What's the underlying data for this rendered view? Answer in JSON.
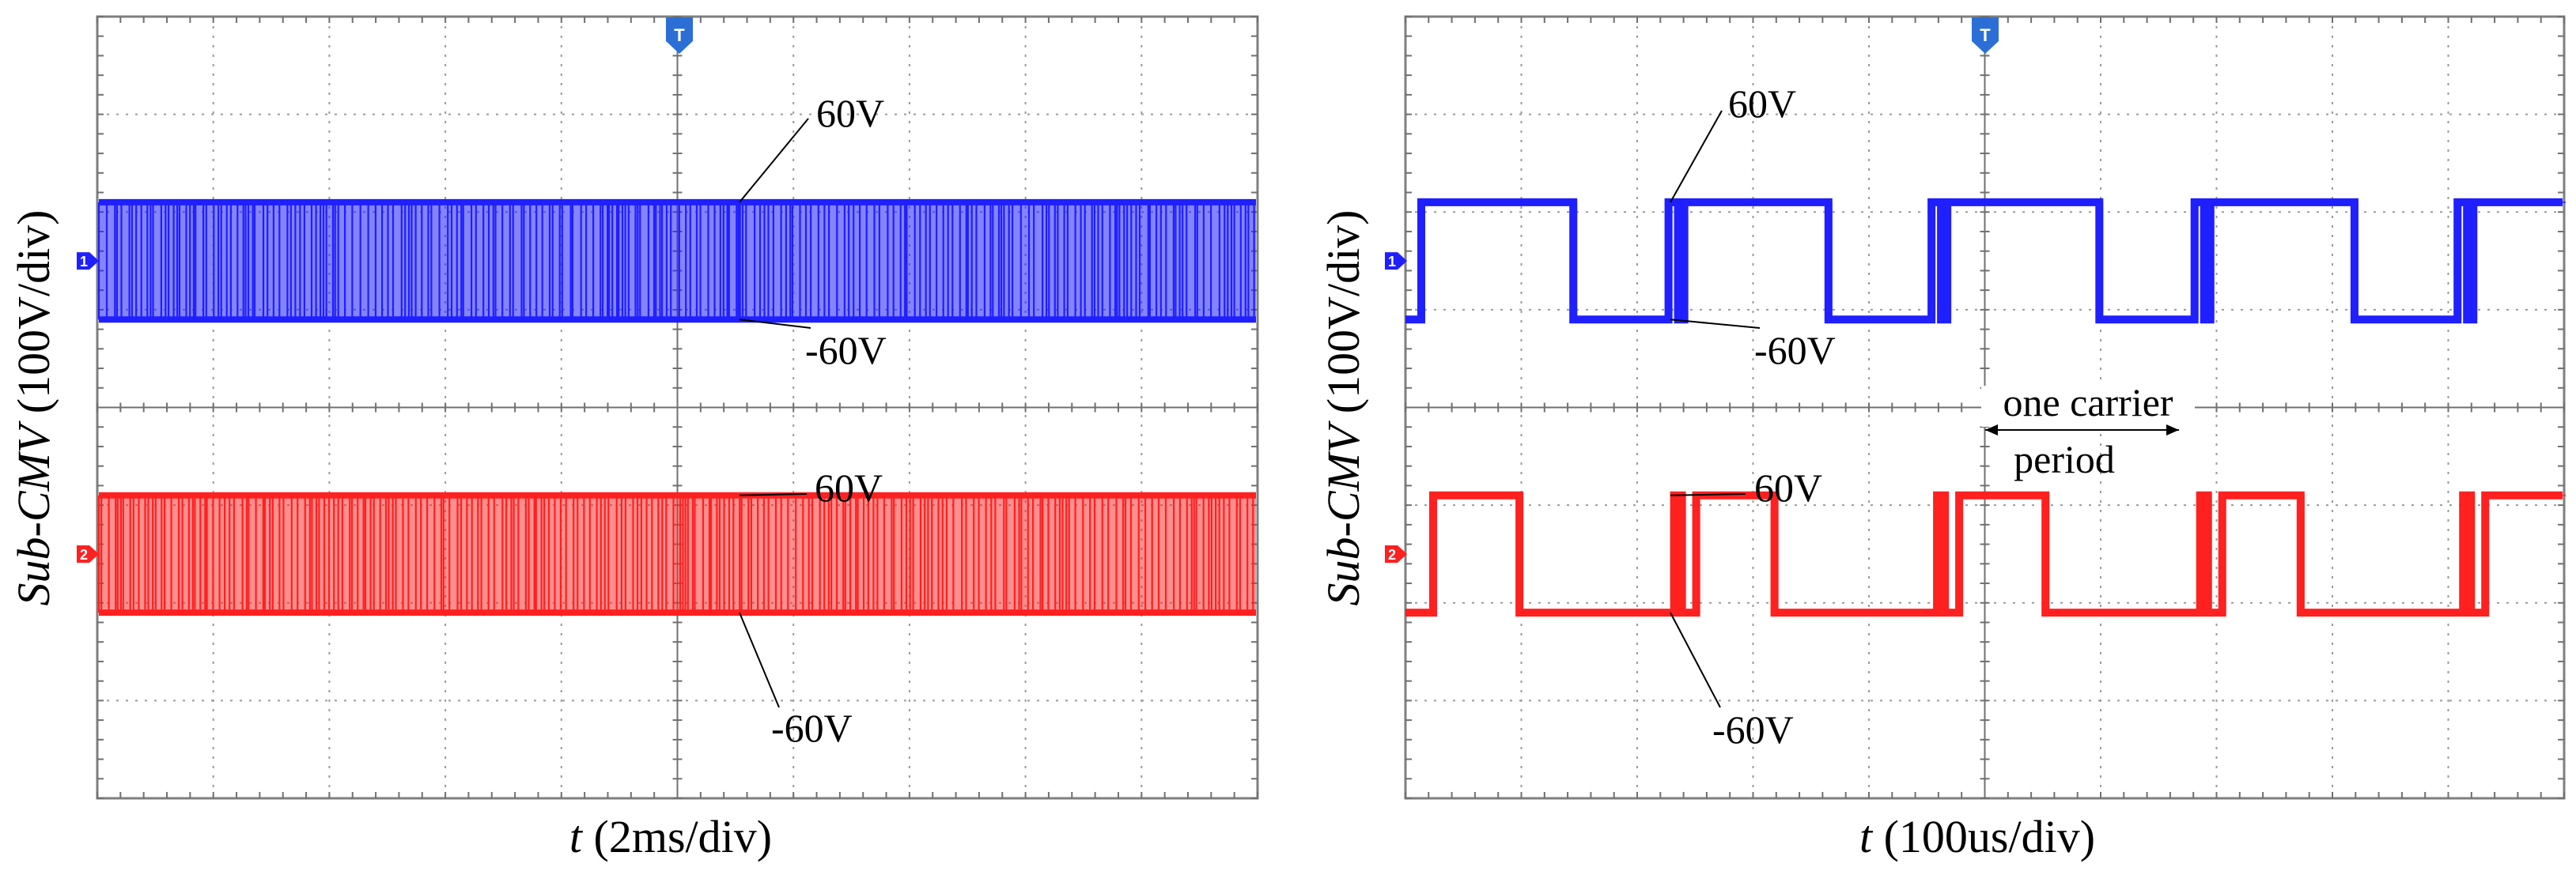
{
  "chart_data": [
    {
      "type": "line",
      "panel": "left",
      "ylabel_italic": "Sub-CMV",
      "ylabel_rest": " (100V/div)",
      "xlabel_italic": "t",
      "xlabel_rest": " (2ms/div)",
      "divisions": {
        "x": 10,
        "y": 8
      },
      "trigger_label": "T",
      "series": [
        {
          "name": "ch1",
          "marker_label": "1",
          "color": "#1f1fff",
          "high": 60,
          "low": -60,
          "offset_div": 1.5,
          "style": "dense",
          "high_label": "60V",
          "low_label": "-60V"
        },
        {
          "name": "ch2",
          "marker_label": "2",
          "color": "#ff2020",
          "high": 60,
          "low": -60,
          "offset_div": -1.5,
          "style": "dense",
          "high_label": "60V",
          "low_label": "-60V"
        }
      ]
    },
    {
      "type": "line",
      "panel": "right",
      "ylabel_italic": "Sub-CMV",
      "ylabel_rest": " (100V/div)",
      "xlabel_italic": "t",
      "xlabel_rest": " (100us/div)",
      "divisions": {
        "x": 10,
        "y": 8
      },
      "trigger_label": "T",
      "annotation_line1": "one carrier",
      "annotation_line2": "period",
      "series": [
        {
          "name": "ch1",
          "marker_label": "1",
          "color": "#1f1fff",
          "high": 60,
          "low": -60,
          "offset_div": 1.5,
          "style": "pulses",
          "high_label": "60V",
          "low_label": "-60V"
        },
        {
          "name": "ch2",
          "marker_label": "2",
          "color": "#ff2020",
          "high": 60,
          "low": -60,
          "offset_div": -1.5,
          "style": "pulses",
          "high_label": "60V",
          "low_label": "-60V"
        }
      ]
    }
  ]
}
